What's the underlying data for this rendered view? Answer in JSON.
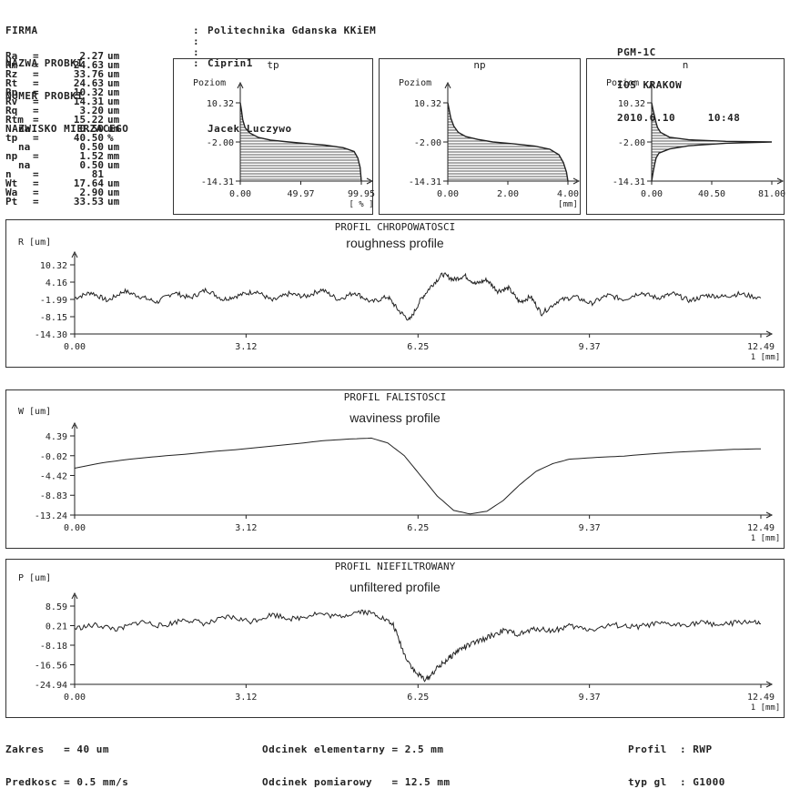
{
  "header": {
    "labels": [
      "FIRMA",
      "NAZWA PROBKI",
      "NUMER PROBKI",
      "NAZWISKO MIERZACEGO"
    ],
    "values": [
      "Politechnika Gdanska KKiEM",
      "Ciprin1",
      "",
      "Jacek Luczywo"
    ],
    "right": [
      "PGM-1C",
      "IOS KRAKOW"
    ],
    "date": "2010.6.10",
    "time": "10:48"
  },
  "params": [
    {
      "name": "Ra",
      "sub": "",
      "value": "2.27",
      "unit": "um"
    },
    {
      "name": "Rm",
      "sub": "",
      "value": "24.63",
      "unit": "um"
    },
    {
      "name": "Rz",
      "sub": "",
      "value": "33.76",
      "unit": "um"
    },
    {
      "name": "Rt",
      "sub": "",
      "value": "24.63",
      "unit": "um"
    },
    {
      "name": "Rp",
      "sub": "",
      "value": "10.32",
      "unit": "um"
    },
    {
      "name": "Rv",
      "sub": "",
      "value": "14.31",
      "unit": "um"
    },
    {
      "name": "Rq",
      "sub": "",
      "value": "3.20",
      "unit": "um"
    },
    {
      "name": "Rtm",
      "sub": "",
      "value": "15.22",
      "unit": "um"
    },
    {
      "name": "",
      "sub": "na",
      "value": "0.50",
      "unit": "um"
    },
    {
      "name": "tp",
      "sub": "",
      "value": "40.50",
      "unit": "%"
    },
    {
      "name": "",
      "sub": "na",
      "value": "0.50",
      "unit": "um"
    },
    {
      "name": "np",
      "sub": "",
      "value": "1.52",
      "unit": "mm"
    },
    {
      "name": "",
      "sub": "na",
      "value": "0.50",
      "unit": "um"
    },
    {
      "name": "n",
      "sub": "",
      "value": "81",
      "unit": ""
    },
    {
      "name": "Wt",
      "sub": "",
      "value": "17.64",
      "unit": "um"
    },
    {
      "name": "Wa",
      "sub": "",
      "value": "2.90",
      "unit": "um"
    },
    {
      "name": "Pt",
      "sub": "",
      "value": "33.53",
      "unit": "um"
    }
  ],
  "footer": {
    "zakres_label": "Zakres",
    "zakres_value": "40 um",
    "predkosc_label": "Predkosc",
    "predkosc_value": "0.5 mm/s",
    "odc_el_label": "Odcinek elementarny",
    "odc_el_value": "2.5 mm",
    "odc_pom_label": "Odcinek pomiarowy",
    "odc_pom_value": "12.5 mm",
    "profil_label": "Profil",
    "profil_value": "RWP",
    "typ_label": "typ gl",
    "typ_value": "G1000"
  },
  "colors": {
    "ink": "#222222",
    "paper": "#ffffff"
  },
  "chart_data": [
    {
      "type": "area",
      "title": "tp",
      "ylabel": "Poziom",
      "xlabel": "[ % ]",
      "x_ticks": [
        "0.00",
        "49.97",
        "99.95"
      ],
      "y_ticks": [
        "10.32",
        "-2.00",
        "-14.31"
      ],
      "xlim": [
        0,
        99.95
      ],
      "ylim": [
        -14.31,
        10.32
      ],
      "x": [
        0,
        1,
        2,
        4,
        8,
        15,
        25,
        40,
        55,
        70,
        85,
        94,
        97,
        99,
        99.95
      ],
      "y": [
        10.32,
        8.0,
        5.0,
        2.5,
        0.8,
        -0.6,
        -1.4,
        -2.0,
        -2.5,
        -3.0,
        -3.8,
        -5.0,
        -7.0,
        -10.0,
        -14.31
      ]
    },
    {
      "type": "area",
      "title": "np",
      "ylabel": "Poziom",
      "xlabel": "[mm]",
      "x_ticks": [
        "0.00",
        "2.00",
        "4.00"
      ],
      "y_ticks": [
        "10.32",
        "-2.00",
        "-14.31"
      ],
      "xlim": [
        0,
        4.0
      ],
      "ylim": [
        -14.31,
        10.32
      ],
      "x": [
        0,
        0.05,
        0.1,
        0.2,
        0.35,
        0.6,
        1.0,
        1.5,
        2.2,
        2.9,
        3.4,
        3.7,
        3.85,
        3.95,
        4.0
      ],
      "y": [
        10.32,
        8.0,
        5.5,
        3.0,
        1.0,
        -0.3,
        -1.2,
        -2.0,
        -2.6,
        -3.3,
        -4.3,
        -6.0,
        -8.5,
        -11.5,
        -14.31
      ]
    },
    {
      "type": "area",
      "title": "n",
      "ylabel": "Poziom",
      "xlabel": "",
      "x_ticks": [
        "0.00",
        "40.50",
        "81.00"
      ],
      "y_ticks": [
        "10.32",
        "-2.00",
        "-14.31"
      ],
      "xlim": [
        0,
        81.0
      ],
      "ylim": [
        -14.31,
        10.32
      ],
      "x": [
        0,
        1,
        2,
        3,
        4,
        6,
        12,
        25,
        50,
        81,
        50,
        25,
        12,
        5,
        3,
        2,
        1,
        0
      ],
      "y": [
        10.32,
        8.0,
        6.0,
        4.0,
        2.5,
        1.0,
        -0.5,
        -1.3,
        -1.8,
        -2.0,
        -2.4,
        -3.2,
        -4.2,
        -5.5,
        -7.0,
        -9.0,
        -11.5,
        -14.31
      ]
    },
    {
      "type": "line",
      "title": "PROFIL CHROPOWATOSCI",
      "subtitle": "roughness profile",
      "ylabel": "R [um]",
      "xlabel": "1 [mm]",
      "x_ticks": [
        "0.00",
        "3.12",
        "6.25",
        "9.37",
        "12.49"
      ],
      "y_ticks": [
        "10.32",
        "4.16",
        "-1.99",
        "-8.15",
        "-14.30"
      ],
      "xlim": [
        0,
        12.49
      ],
      "ylim": [
        -14.3,
        10.32
      ],
      "x": [
        0,
        0.3,
        0.6,
        0.9,
        1.2,
        1.5,
        1.8,
        2.1,
        2.4,
        2.7,
        3.0,
        3.3,
        3.6,
        3.9,
        4.2,
        4.5,
        4.8,
        5.1,
        5.4,
        5.7,
        5.9,
        6.1,
        6.3,
        6.5,
        6.7,
        6.9,
        7.1,
        7.3,
        7.5,
        7.7,
        7.9,
        8.1,
        8.3,
        8.5,
        8.8,
        9.1,
        9.4,
        9.7,
        10.0,
        10.3,
        10.6,
        10.9,
        11.2,
        11.5,
        11.8,
        12.1,
        12.49
      ],
      "y": [
        -1.5,
        0.5,
        -2.5,
        1.0,
        -1.0,
        -3.0,
        0.5,
        -1.5,
        1.5,
        -2.0,
        -0.5,
        1.0,
        -2.5,
        0.0,
        -1.0,
        1.5,
        -2.0,
        0.5,
        -3.0,
        -1.0,
        -6.0,
        -9.5,
        -2.0,
        3.0,
        7.0,
        5.0,
        6.5,
        3.5,
        5.0,
        1.0,
        2.0,
        -3.0,
        -1.0,
        -7.0,
        -2.5,
        -1.0,
        -3.5,
        -0.5,
        -2.0,
        0.5,
        -1.5,
        0.0,
        -2.5,
        -0.5,
        -1.0,
        0.0,
        -1.5
      ]
    },
    {
      "type": "line",
      "title": "PROFIL FALISTOSCI",
      "subtitle": "waviness profile",
      "ylabel": "W [um]",
      "xlabel": "1 [mm]",
      "x_ticks": [
        "0.00",
        "3.12",
        "6.25",
        "9.37",
        "12.49"
      ],
      "y_ticks": [
        "4.39",
        "-0.02",
        "-4.42",
        "-8.83",
        "-13.24"
      ],
      "xlim": [
        0,
        12.49
      ],
      "ylim": [
        -13.24,
        4.39
      ],
      "x": [
        0,
        0.5,
        1.0,
        1.5,
        2.0,
        2.5,
        3.0,
        3.5,
        4.0,
        4.5,
        5.0,
        5.4,
        5.7,
        6.0,
        6.3,
        6.6,
        6.9,
        7.2,
        7.5,
        7.8,
        8.1,
        8.4,
        8.7,
        9.0,
        9.5,
        10.0,
        10.5,
        11.0,
        11.5,
        12.0,
        12.49
      ],
      "y": [
        -2.8,
        -1.6,
        -0.8,
        -0.2,
        0.3,
        0.9,
        1.4,
        2.0,
        2.6,
        3.3,
        3.7,
        3.9,
        2.8,
        0.0,
        -4.5,
        -9.0,
        -12.2,
        -13.0,
        -12.4,
        -10.0,
        -6.5,
        -3.5,
        -1.8,
        -0.8,
        -0.4,
        -0.1,
        0.4,
        0.8,
        1.1,
        1.4,
        1.5
      ]
    },
    {
      "type": "line",
      "title": "PROFIL NIEFILTROWANY",
      "subtitle": "unfiltered profile",
      "ylabel": "P [um]",
      "xlabel": "1 [mm]",
      "x_ticks": [
        "0.00",
        "3.12",
        "6.25",
        "9.37",
        "12.49"
      ],
      "y_ticks": [
        "8.59",
        "0.21",
        "-8.18",
        "-16.56",
        "-24.94"
      ],
      "xlim": [
        0,
        12.49
      ],
      "ylim": [
        -24.94,
        8.59
      ],
      "x": [
        0,
        0.4,
        0.8,
        1.2,
        1.6,
        2.0,
        2.4,
        2.8,
        3.2,
        3.6,
        4.0,
        4.4,
        4.8,
        5.2,
        5.5,
        5.8,
        6.0,
        6.2,
        6.4,
        6.6,
        6.8,
        7.0,
        7.2,
        7.5,
        7.8,
        8.1,
        8.4,
        8.7,
        9.0,
        9.4,
        9.8,
        10.2,
        10.6,
        11.0,
        11.4,
        11.8,
        12.2,
        12.49
      ],
      "y": [
        -1.0,
        0.5,
        -1.5,
        2.0,
        0.0,
        3.0,
        1.0,
        4.0,
        2.0,
        5.0,
        3.0,
        5.5,
        4.0,
        6.5,
        5.0,
        0.5,
        -12.0,
        -20.0,
        -23.0,
        -18.0,
        -14.0,
        -10.0,
        -8.0,
        -5.0,
        -2.0,
        -3.5,
        -1.0,
        -2.0,
        0.0,
        -1.5,
        0.5,
        -0.5,
        1.0,
        0.5,
        1.5,
        0.5,
        2.0,
        1.0
      ]
    }
  ]
}
